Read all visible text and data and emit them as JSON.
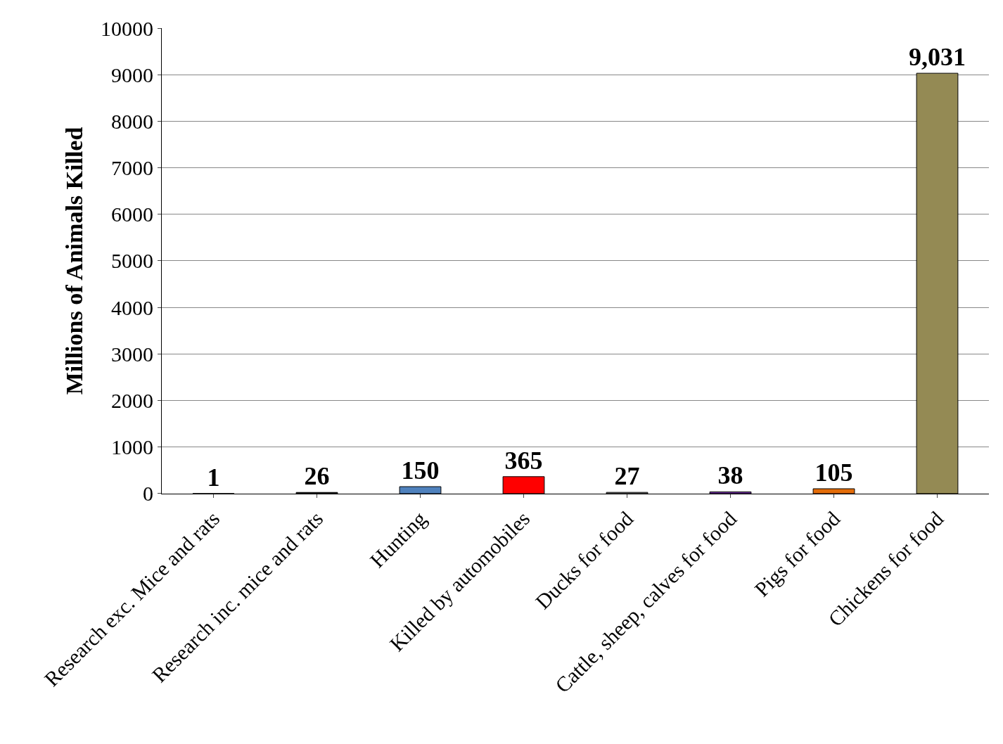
{
  "chart_data": {
    "type": "bar",
    "ylabel": "Millions of Animals Killed",
    "categories": [
      "Research exc. Mice and rats",
      "Research inc. mice and rats",
      "Hunting",
      "Killed by automobiles",
      "Ducks for food",
      "Cattle, sheep, calves for food",
      "Pigs for food",
      "Chickens for food"
    ],
    "values": [
      1,
      26,
      150,
      365,
      27,
      38,
      105,
      9031
    ],
    "value_labels": [
      "1",
      "26",
      "150",
      "365",
      "27",
      "38",
      "105",
      "9,031"
    ],
    "colors": [
      "#000000",
      "#000000",
      "#4f81bd",
      "#ff0000",
      "#7f7f7f",
      "#7030a0",
      "#e36c09",
      "#948a54"
    ],
    "ylim": [
      0,
      10000
    ],
    "yticks": [
      0,
      1000,
      2000,
      3000,
      4000,
      5000,
      6000,
      7000,
      8000,
      9000,
      10000
    ],
    "grid": "y"
  }
}
